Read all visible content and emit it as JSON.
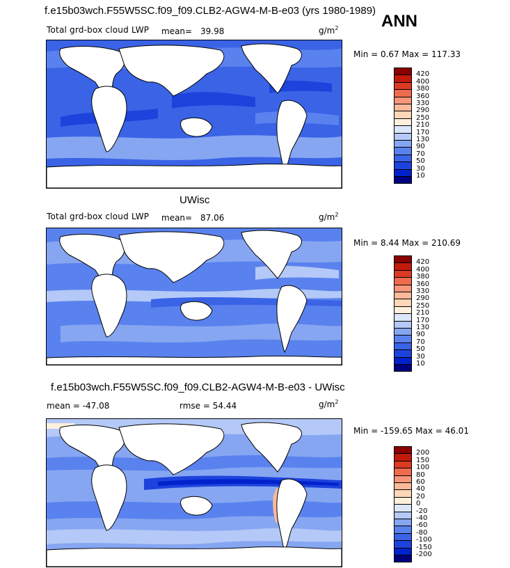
{
  "header": {
    "case_title": "f.e15b03wch.F55W5SC.f09_f09.CLB2-AGW4-M-B-e03 (yrs 1980-1989)",
    "season": "ANN"
  },
  "panels": [
    {
      "id": "model",
      "variable": "Total grd-box cloud LWP",
      "mean_label": "mean=",
      "mean_value": "39.98",
      "units_base": "g/m",
      "units_exp": "2",
      "minmax": "Min =    0.67 Max = 117.33",
      "levels": [
        "10",
        "30",
        "50",
        "70",
        "90",
        "130",
        "170",
        "210",
        "250",
        "290",
        "330",
        "360",
        "380",
        "400",
        "420"
      ],
      "colors": [
        "#000080",
        "#0022cc",
        "#1d43dd",
        "#3a63e6",
        "#5a82ee",
        "#86a6f2",
        "#b4c9f7",
        "#dbe6fb",
        "#fff0dd",
        "#fdd7b7",
        "#fbb99a",
        "#f7967a",
        "#ef6b4d",
        "#dc3a22",
        "#c21a0b",
        "#8b0000"
      ]
    },
    {
      "id": "obs",
      "subtitle": "UWisc",
      "variable": "Total grd-box cloud LWP",
      "mean_label": "mean=",
      "mean_value": "87.06",
      "units_base": "g/m",
      "units_exp": "2",
      "minmax": "Min =    8.44 Max = 210.69",
      "levels": [
        "10",
        "30",
        "50",
        "70",
        "90",
        "130",
        "170",
        "210",
        "250",
        "290",
        "330",
        "360",
        "380",
        "400",
        "420"
      ],
      "colors": [
        "#000080",
        "#0022cc",
        "#1d43dd",
        "#3a63e6",
        "#5a82ee",
        "#86a6f2",
        "#b4c9f7",
        "#dbe6fb",
        "#fff0dd",
        "#fdd7b7",
        "#fbb99a",
        "#f7967a",
        "#ef6b4d",
        "#dc3a22",
        "#c21a0b",
        "#8b0000"
      ]
    },
    {
      "id": "diff",
      "subtitle": "f.e15b03wch.F55W5SC.f09_f09.CLB2-AGW4-M-B-e03 - UWisc",
      "mean_label": "mean = -47.08",
      "rmse_label": "rmse =  54.44",
      "units_base": "g/m",
      "units_exp": "2",
      "minmax": "Min = -159.65 Max =  46.01",
      "levels": [
        "-200",
        "-150",
        "-100",
        "-80",
        "-60",
        "-40",
        "-20",
        "0",
        "20",
        "40",
        "60",
        "80",
        "100",
        "150",
        "200"
      ],
      "colors": [
        "#000080",
        "#0022cc",
        "#1d43dd",
        "#3a63e6",
        "#5a82ee",
        "#86a6f2",
        "#b4c9f7",
        "#dbe6fb",
        "#fff0dd",
        "#fdd7b7",
        "#fbb99a",
        "#f7967a",
        "#ef6b4d",
        "#dc3a22",
        "#c21a0b",
        "#8b0000"
      ]
    }
  ]
}
